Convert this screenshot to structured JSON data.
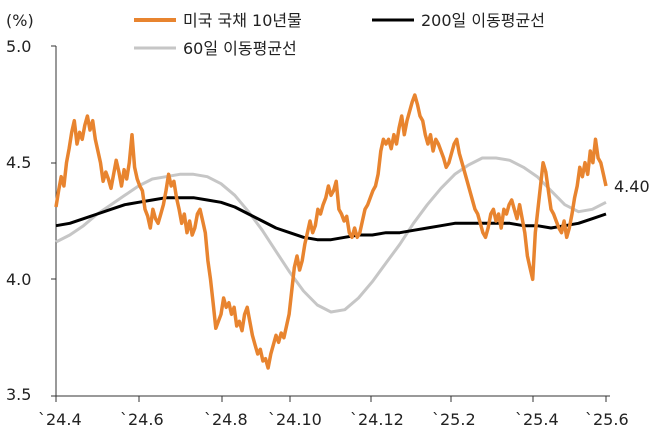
{
  "chart_data": {
    "type": "line",
    "unit_label": "(%)",
    "last_value_label": "4.40",
    "ylim": [
      3.5,
      5.0
    ],
    "yticks": [
      "5.0",
      "4.5",
      "4.0",
      "3.5"
    ],
    "xticks": [
      "`24.4",
      "`24.6",
      "`24.8",
      "`24.10",
      "`24.12",
      "`25.2",
      "`25.4",
      "`25.6"
    ],
    "grid": false,
    "legend_position": "top",
    "series": [
      {
        "name": "미국 국채 10년물",
        "color": "#E8842F",
        "values": [
          4.31,
          4.38,
          4.44,
          4.4,
          4.5,
          4.56,
          4.63,
          4.68,
          4.58,
          4.63,
          4.6,
          4.66,
          4.7,
          4.64,
          4.68,
          4.6,
          4.55,
          4.5,
          4.42,
          4.46,
          4.43,
          4.39,
          4.45,
          4.51,
          4.46,
          4.4,
          4.47,
          4.43,
          4.5,
          4.62,
          4.48,
          4.43,
          4.4,
          4.38,
          4.3,
          4.27,
          4.22,
          4.3,
          4.26,
          4.24,
          4.28,
          4.32,
          4.38,
          4.45,
          4.4,
          4.42,
          4.35,
          4.3,
          4.24,
          4.28,
          4.2,
          4.25,
          4.19,
          4.22,
          4.28,
          4.3,
          4.25,
          4.2,
          4.08,
          4.0,
          3.9,
          3.79,
          3.82,
          3.85,
          3.92,
          3.88,
          3.9,
          3.85,
          3.88,
          3.8,
          3.82,
          3.78,
          3.85,
          3.88,
          3.82,
          3.76,
          3.72,
          3.68,
          3.7,
          3.65,
          3.66,
          3.62,
          3.68,
          3.72,
          3.76,
          3.73,
          3.77,
          3.75,
          3.8,
          3.85,
          3.95,
          4.05,
          4.1,
          4.04,
          4.08,
          4.15,
          4.2,
          4.25,
          4.2,
          4.23,
          4.3,
          4.28,
          4.32,
          4.35,
          4.4,
          4.36,
          4.38,
          4.42,
          4.3,
          4.28,
          4.25,
          4.27,
          4.2,
          4.18,
          4.22,
          4.18,
          4.2,
          4.25,
          4.3,
          4.32,
          4.35,
          4.38,
          4.4,
          4.45,
          4.55,
          4.6,
          4.58,
          4.6,
          4.56,
          4.62,
          4.58,
          4.65,
          4.7,
          4.62,
          4.68,
          4.72,
          4.76,
          4.79,
          4.75,
          4.7,
          4.68,
          4.62,
          4.58,
          4.62,
          4.55,
          4.6,
          4.58,
          4.55,
          4.52,
          4.48,
          4.5,
          4.54,
          4.58,
          4.6,
          4.54,
          4.5,
          4.46,
          4.42,
          4.38,
          4.34,
          4.3,
          4.28,
          4.24,
          4.2,
          4.18,
          4.22,
          4.28,
          4.3,
          4.25,
          4.28,
          4.22,
          4.3,
          4.28,
          4.32,
          4.34,
          4.3,
          4.26,
          4.32,
          4.26,
          4.2,
          4.1,
          4.05,
          4.0,
          4.2,
          4.3,
          4.4,
          4.5,
          4.46,
          4.38,
          4.3,
          4.28,
          4.25,
          4.22,
          4.2,
          4.25,
          4.18,
          4.22,
          4.28,
          4.35,
          4.4,
          4.48,
          4.44,
          4.5,
          4.45,
          4.55,
          4.5,
          4.6,
          4.52,
          4.5,
          4.45,
          4.4
        ]
      },
      {
        "name": "200일 이동평균선",
        "color": "#000000",
        "values": [
          4.23,
          4.24,
          4.26,
          4.28,
          4.3,
          4.32,
          4.33,
          4.34,
          4.35,
          4.35,
          4.35,
          4.34,
          4.33,
          4.31,
          4.28,
          4.25,
          4.22,
          4.2,
          4.18,
          4.17,
          4.17,
          4.18,
          4.19,
          4.19,
          4.2,
          4.2,
          4.21,
          4.22,
          4.23,
          4.24,
          4.24,
          4.24,
          4.24,
          4.24,
          4.23,
          4.23,
          4.22,
          4.23,
          4.24,
          4.26,
          4.28
        ]
      },
      {
        "name": "60일 이동평균선",
        "color": "#C6C6C6",
        "values": [
          4.16,
          4.19,
          4.23,
          4.28,
          4.32,
          4.36,
          4.4,
          4.43,
          4.44,
          4.45,
          4.45,
          4.44,
          4.41,
          4.36,
          4.29,
          4.21,
          4.12,
          4.03,
          3.95,
          3.89,
          3.86,
          3.87,
          3.92,
          3.99,
          4.07,
          4.15,
          4.24,
          4.32,
          4.39,
          4.45,
          4.49,
          4.52,
          4.52,
          4.51,
          4.48,
          4.44,
          4.38,
          4.32,
          4.29,
          4.3,
          4.33
        ]
      }
    ]
  }
}
